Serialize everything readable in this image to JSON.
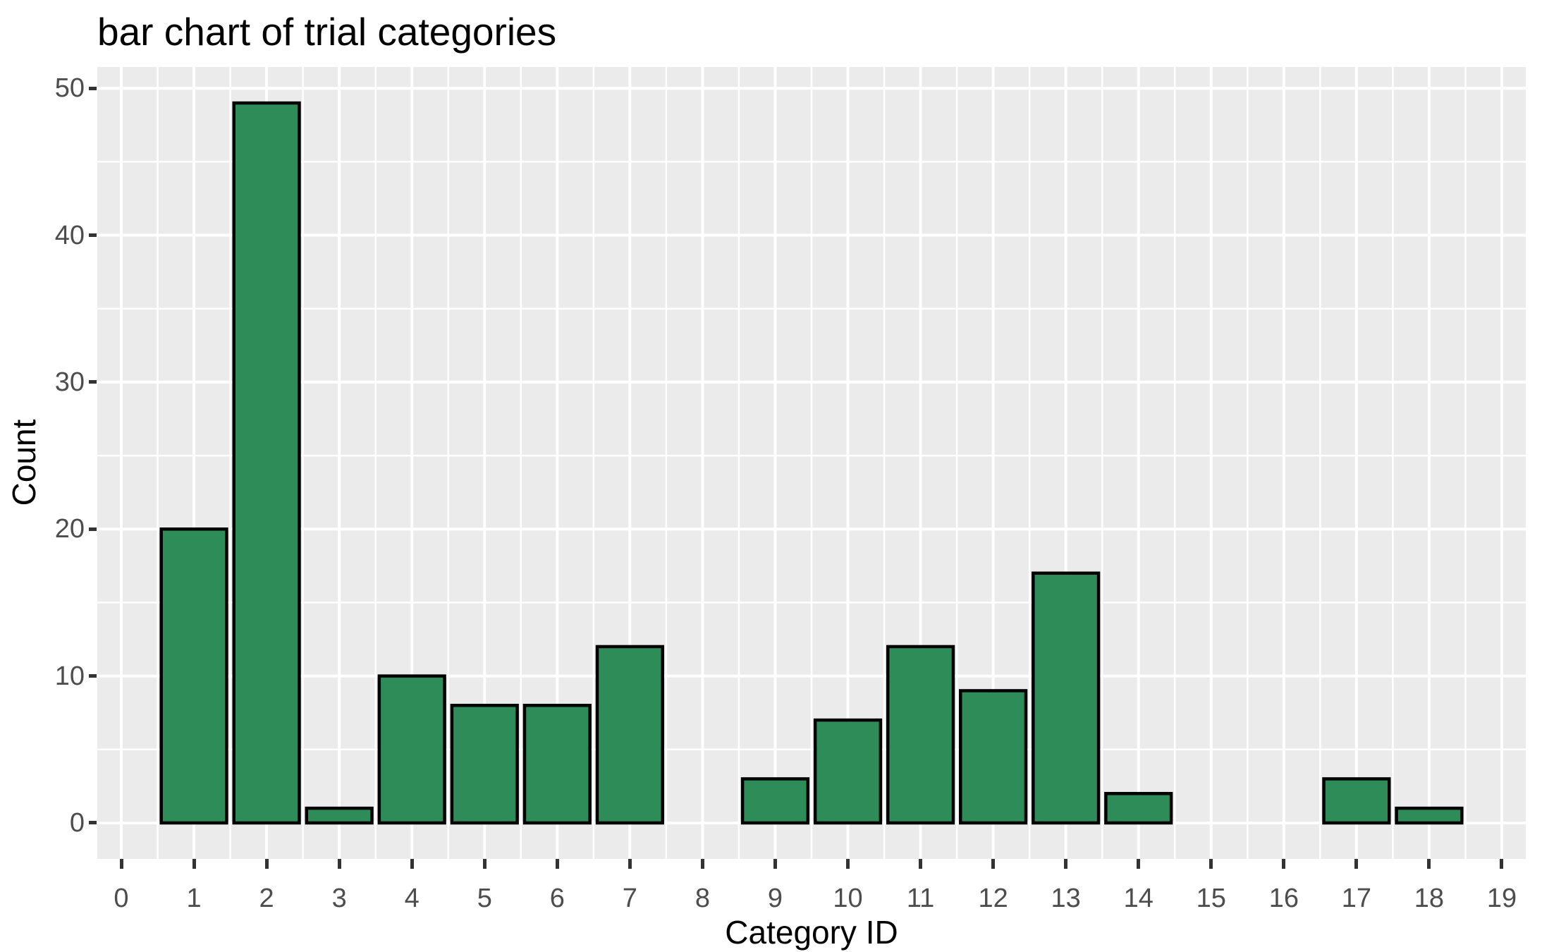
{
  "chart_data": {
    "type": "bar",
    "title": "bar chart of trial categories",
    "xlabel": "Category ID",
    "ylabel": "Count",
    "categories": [
      0,
      1,
      2,
      3,
      4,
      5,
      6,
      7,
      8,
      9,
      10,
      11,
      12,
      13,
      14,
      15,
      16,
      17,
      18,
      19
    ],
    "values": [
      0,
      20,
      49,
      1,
      10,
      8,
      8,
      12,
      0,
      3,
      7,
      12,
      9,
      17,
      2,
      0,
      0,
      3,
      1,
      0
    ],
    "x_ticks": [
      0,
      1,
      2,
      3,
      4,
      5,
      6,
      7,
      8,
      9,
      10,
      11,
      12,
      13,
      14,
      15,
      16,
      17,
      18,
      19
    ],
    "y_ticks": [
      0,
      10,
      20,
      30,
      40,
      50
    ],
    "xlim": [
      -0.33,
      19.33
    ],
    "ylim": [
      -2.45,
      51.45
    ],
    "bar_width": 0.9,
    "grid": "on",
    "legend": "none",
    "style": {
      "bar_fill": "#2e8c58",
      "bar_stroke": "#000000",
      "panel_bg": "#ebebeb",
      "grid_major_color": "#ffffff",
      "grid_minor_color": "#ffffff",
      "tick_mark_color": "#333333",
      "tick_label_color": "#4d4d4d",
      "title_color": "#000000",
      "axis_title_color": "#000000",
      "page_bg": "#ffffff"
    }
  }
}
